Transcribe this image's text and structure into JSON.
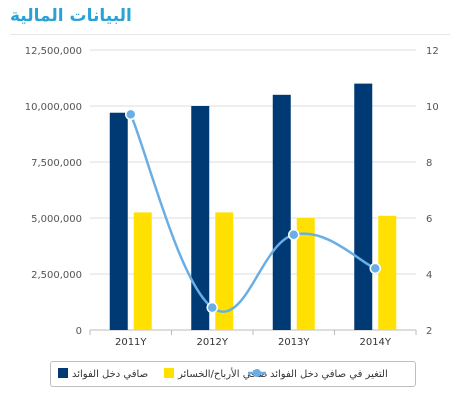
{
  "header": {
    "title": "البيانات المالية"
  },
  "colors": {
    "series1": "#003a75",
    "series2": "#ffe000",
    "series3": "#6aaee6",
    "title": "#29a3d6"
  },
  "chart_data": {
    "type": "bar",
    "categories": [
      "2011Y",
      "2012Y",
      "2013Y",
      "2014Y"
    ],
    "series": [
      {
        "name": "صافي دخل الفوائد",
        "type": "bar",
        "axis": "left",
        "values": [
          9700000,
          10000000,
          10500000,
          11000000
        ]
      },
      {
        "name": "صافي الأرباح/الخسائر",
        "type": "bar",
        "axis": "left",
        "values": [
          5250000,
          5250000,
          5000000,
          5100000
        ]
      },
      {
        "name": "التغير في صافي دخل الفوائد",
        "type": "line",
        "axis": "right",
        "values": [
          9.7,
          2.8,
          5.4,
          4.2
        ]
      }
    ],
    "left_axis": {
      "ylim": [
        0,
        12500000
      ],
      "ticks": [
        0,
        2500000,
        5000000,
        7500000,
        10000000,
        12500000
      ],
      "tick_labels": [
        "0",
        "2,500,000",
        "5,000,000",
        "7,500,000",
        "10,000,000",
        "12,500,000"
      ]
    },
    "right_axis": {
      "ylim": [
        2,
        12
      ],
      "ticks": [
        2,
        4,
        6,
        8,
        10,
        12
      ],
      "tick_labels": [
        "2",
        "4",
        "6",
        "8",
        "10",
        "12"
      ]
    },
    "grid": true,
    "legend": "bottom"
  }
}
